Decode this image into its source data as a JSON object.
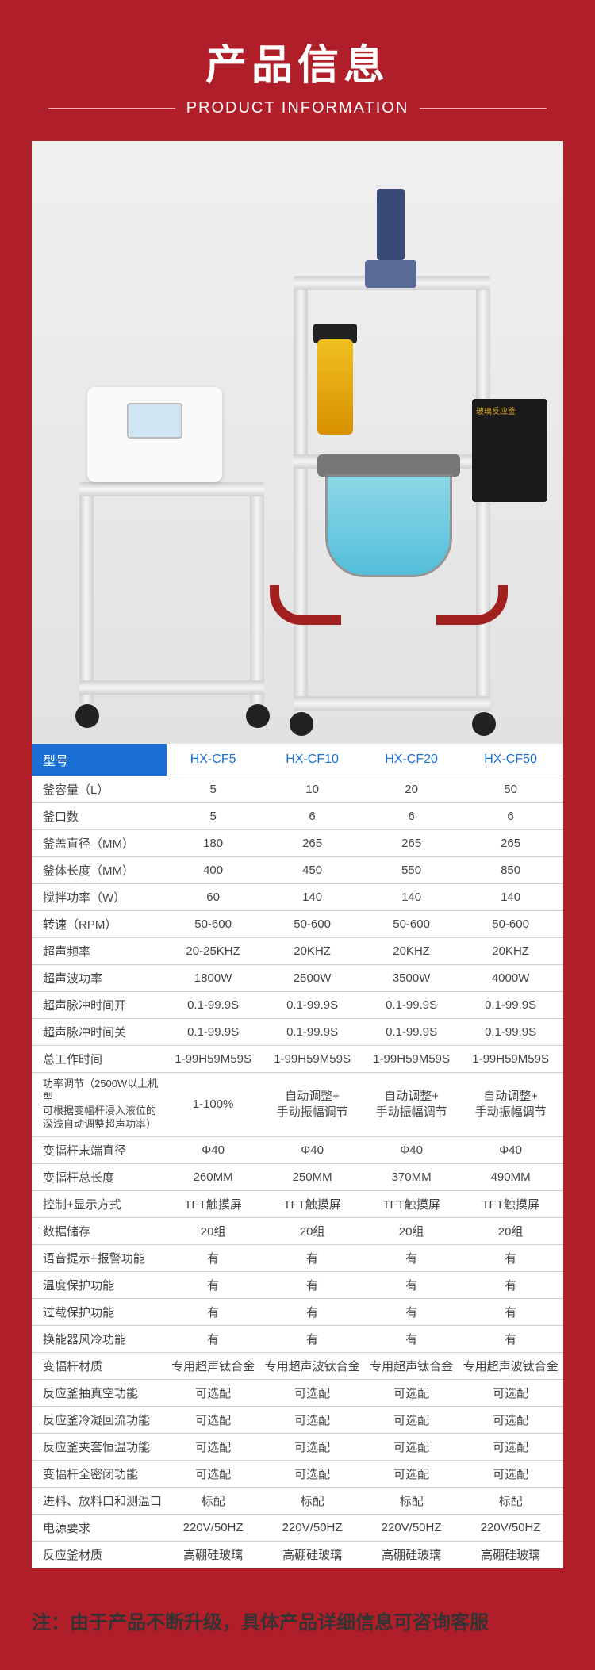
{
  "header": {
    "title": "产品信息",
    "subtitle": "PRODUCT INFORMATION"
  },
  "colors": {
    "brand_red": "#b01e2a",
    "accent_blue": "#1a6fd6",
    "text": "#444444",
    "border": "#d0d0d0"
  },
  "spec": {
    "head_label": "型号",
    "models": [
      "HX-CF5",
      "HX-CF10",
      "HX-CF20",
      "HX-CF50"
    ],
    "rows": [
      {
        "label": "釜容量（L）",
        "v": [
          "5",
          "10",
          "20",
          "50"
        ]
      },
      {
        "label": "釜口数",
        "v": [
          "5",
          "6",
          "6",
          "6"
        ]
      },
      {
        "label": "釜盖直径（MM）",
        "v": [
          "180",
          "265",
          "265",
          "265"
        ]
      },
      {
        "label": "釜体长度（MM）",
        "v": [
          "400",
          "450",
          "550",
          "850"
        ]
      },
      {
        "label": "搅拌功率（W）",
        "v": [
          "60",
          "140",
          "140",
          "140"
        ]
      },
      {
        "label": "转速（RPM）",
        "v": [
          "50-600",
          "50-600",
          "50-600",
          "50-600"
        ]
      },
      {
        "label": "超声频率",
        "v": [
          "20-25KHZ",
          "20KHZ",
          "20KHZ",
          "20KHZ"
        ]
      },
      {
        "label": "超声波功率",
        "v": [
          "1800W",
          "2500W",
          "3500W",
          "4000W"
        ]
      },
      {
        "label": "超声脉冲时间开",
        "v": [
          "0.1-99.9S",
          "0.1-99.9S",
          "0.1-99.9S",
          "0.1-99.9S"
        ]
      },
      {
        "label": "超声脉冲时间关",
        "v": [
          "0.1-99.9S",
          "0.1-99.9S",
          "0.1-99.9S",
          "0.1-99.9S"
        ]
      },
      {
        "label": "总工作时间",
        "v": [
          "1-99H59M59S",
          "1-99H59M59S",
          "1-99H59M59S",
          "1-99H59M59S"
        ]
      },
      {
        "label": "功率调节（2500W以上机型\n可根据变幅杆浸入液位的\n深浅自动调整超声功率）",
        "v": [
          "1-100%",
          "自动调整+\n手动振幅调节",
          "自动调整+\n手动振幅调节",
          "自动调整+\n手动振幅调节"
        ],
        "multiline": true
      },
      {
        "label": "变幅杆末端直径",
        "v": [
          "Φ40",
          "Φ40",
          "Φ40",
          "Φ40"
        ]
      },
      {
        "label": "变幅杆总长度",
        "v": [
          "260MM",
          "250MM",
          "370MM",
          "490MM"
        ]
      },
      {
        "label": "控制+显示方式",
        "v": [
          "TFT触摸屏",
          "TFT触摸屏",
          "TFT触摸屏",
          "TFT触摸屏"
        ]
      },
      {
        "label": "数据储存",
        "v": [
          "20组",
          "20组",
          "20组",
          "20组"
        ]
      },
      {
        "label": "语音提示+报警功能",
        "v": [
          "有",
          "有",
          "有",
          "有"
        ]
      },
      {
        "label": "温度保护功能",
        "v": [
          "有",
          "有",
          "有",
          "有"
        ]
      },
      {
        "label": "过载保护功能",
        "v": [
          "有",
          "有",
          "有",
          "有"
        ]
      },
      {
        "label": "换能器风冷功能",
        "v": [
          "有",
          "有",
          "有",
          "有"
        ]
      },
      {
        "label": "变幅杆材质",
        "v": [
          "专用超声钛合金",
          "专用超声波钛合金",
          "专用超声钛合金",
          "专用超声波钛合金"
        ]
      },
      {
        "label": "反应釜抽真空功能",
        "v": [
          "可选配",
          "可选配",
          "可选配",
          "可选配"
        ]
      },
      {
        "label": "反应釜冷凝回流功能",
        "v": [
          "可选配",
          "可选配",
          "可选配",
          "可选配"
        ]
      },
      {
        "label": "反应釜夹套恒温功能",
        "v": [
          "可选配",
          "可选配",
          "可选配",
          "可选配"
        ]
      },
      {
        "label": "变幅杆全密闭功能",
        "v": [
          "可选配",
          "可选配",
          "可选配",
          "可选配"
        ]
      },
      {
        "label": "进料、放料口和测温口",
        "v": [
          "标配",
          "标配",
          "标配",
          "标配"
        ]
      },
      {
        "label": "电源要求",
        "v": [
          "220V/50HZ",
          "220V/50HZ",
          "220V/50HZ",
          "220V/50HZ"
        ]
      },
      {
        "label": "反应釜材质",
        "v": [
          "高硼硅玻璃",
          "高硼硅玻璃",
          "高硼硅玻璃",
          "高硼硅玻璃"
        ]
      }
    ]
  },
  "note": "注：由于产品不断升级，具体产品详细信息可咨询客服"
}
